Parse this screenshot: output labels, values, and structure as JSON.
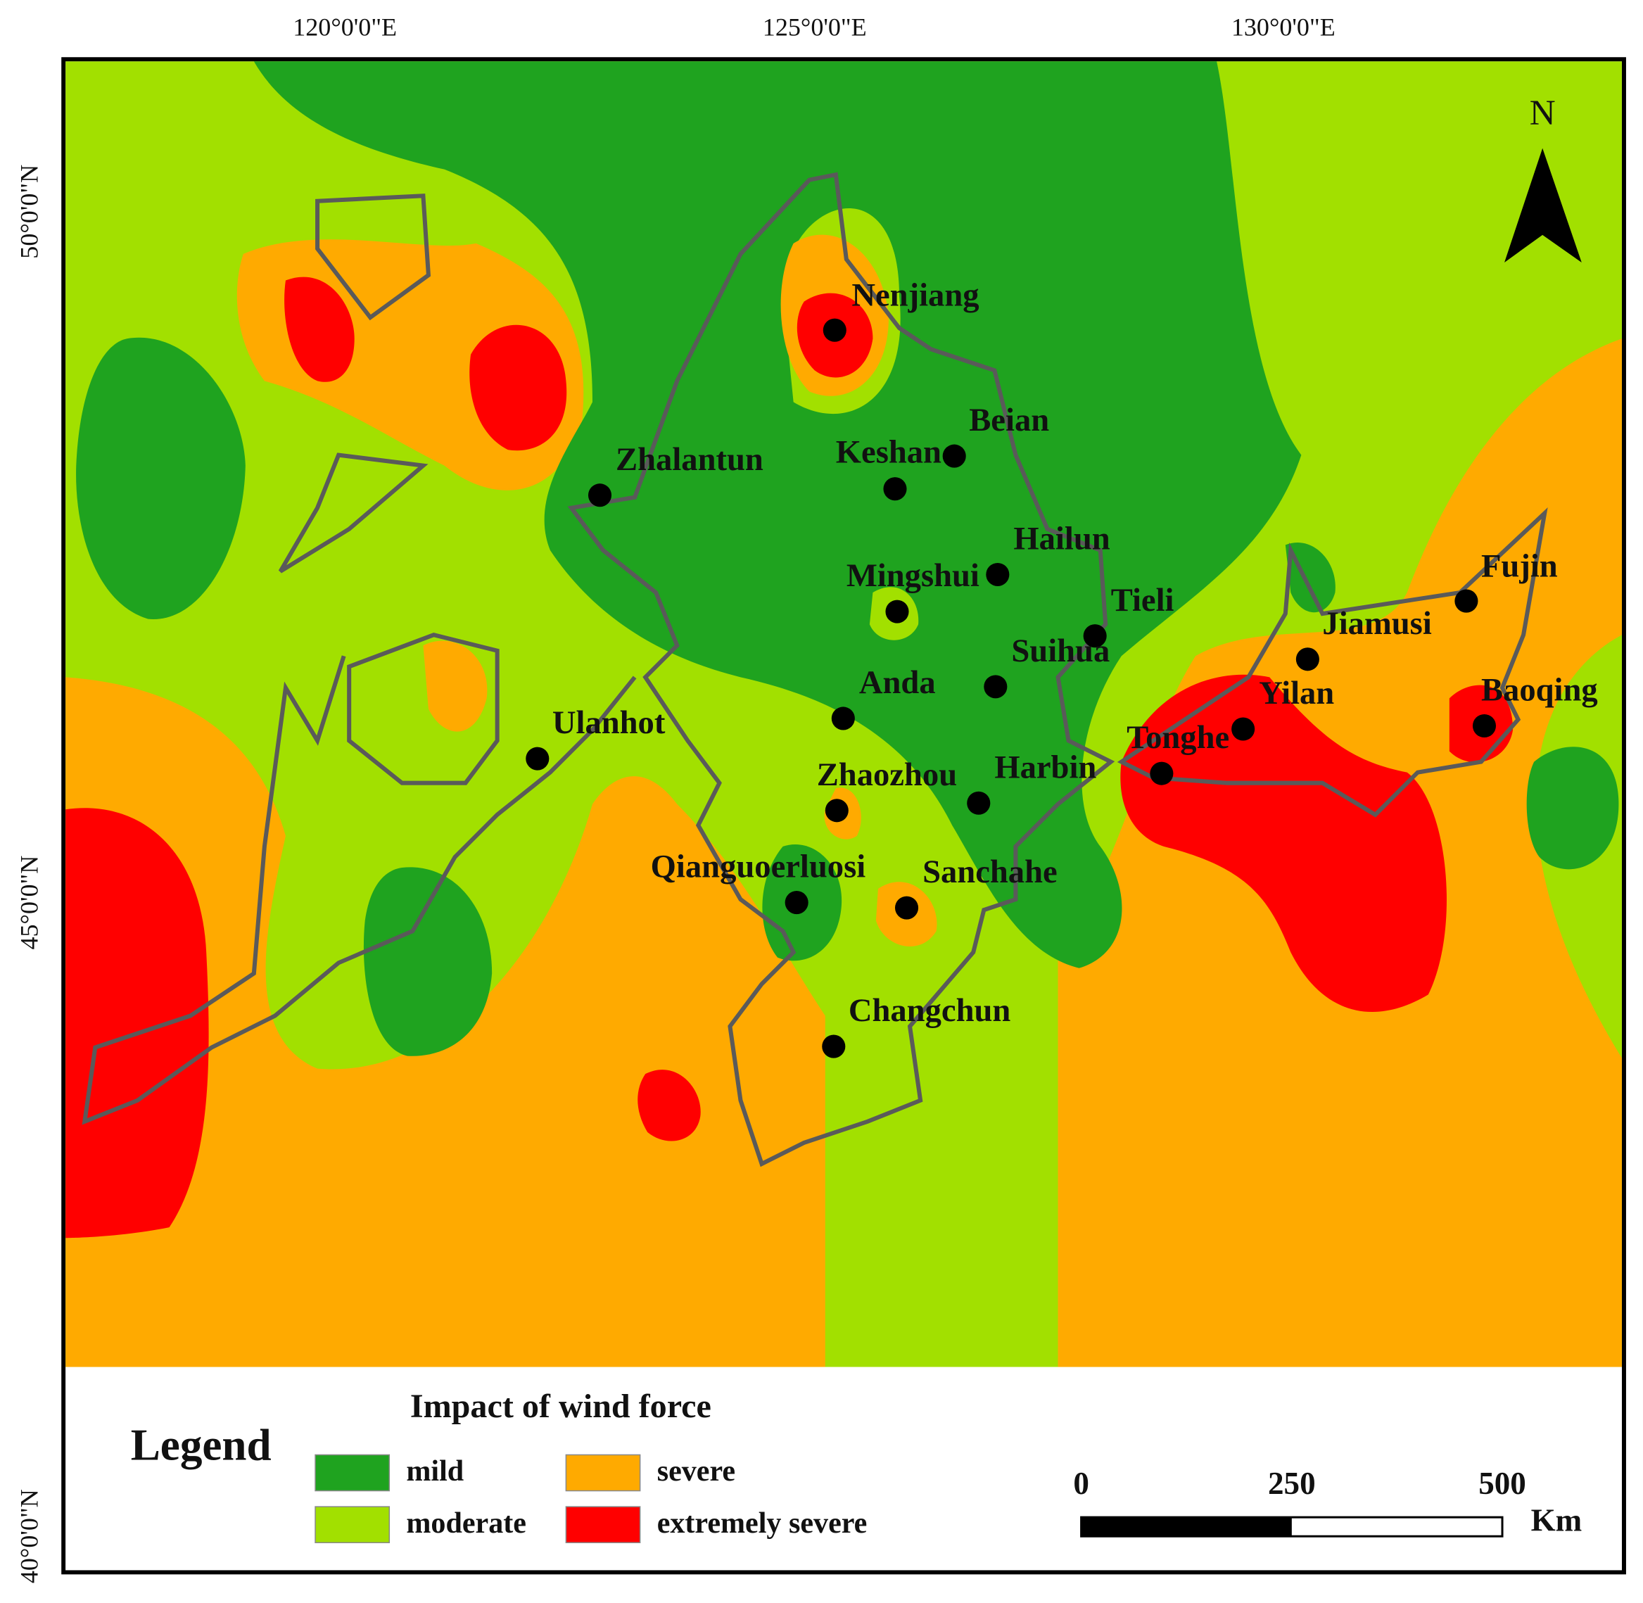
{
  "axes": {
    "top": [
      "120°0'0\"E",
      "125°0'0\"E",
      "130°0'0\"E"
    ],
    "left": [
      "50°0'0\"N",
      "45°0'0\"N",
      "40°0'0\"N"
    ]
  },
  "north": "N",
  "places": [
    "Nenjiang",
    "Beian",
    "Keshan",
    "Zhalantun",
    "Hailun",
    "Mingshui",
    "Tieli",
    "Jiamusi",
    "Fujin",
    "Suihua",
    "Anda",
    "Yilan",
    "Baoqing",
    "Ulanhot",
    "Tonghe",
    "Harbin",
    "Zhaozhou",
    "Qianguoerluosi",
    "Sanchahe",
    "Changchun"
  ],
  "legend": {
    "title": "Legend",
    "subtitle": "Impact of wind force",
    "items": [
      {
        "label": "mild",
        "color": "#1fa31f"
      },
      {
        "label": "moderate",
        "color": "#a2e000"
      },
      {
        "label": "severe",
        "color": "#ffaa00"
      },
      {
        "label": "extremely severe",
        "color": "#ff0000"
      }
    ]
  },
  "scale_bar": {
    "ticks": [
      0,
      250,
      500
    ],
    "unit": "Km"
  }
}
